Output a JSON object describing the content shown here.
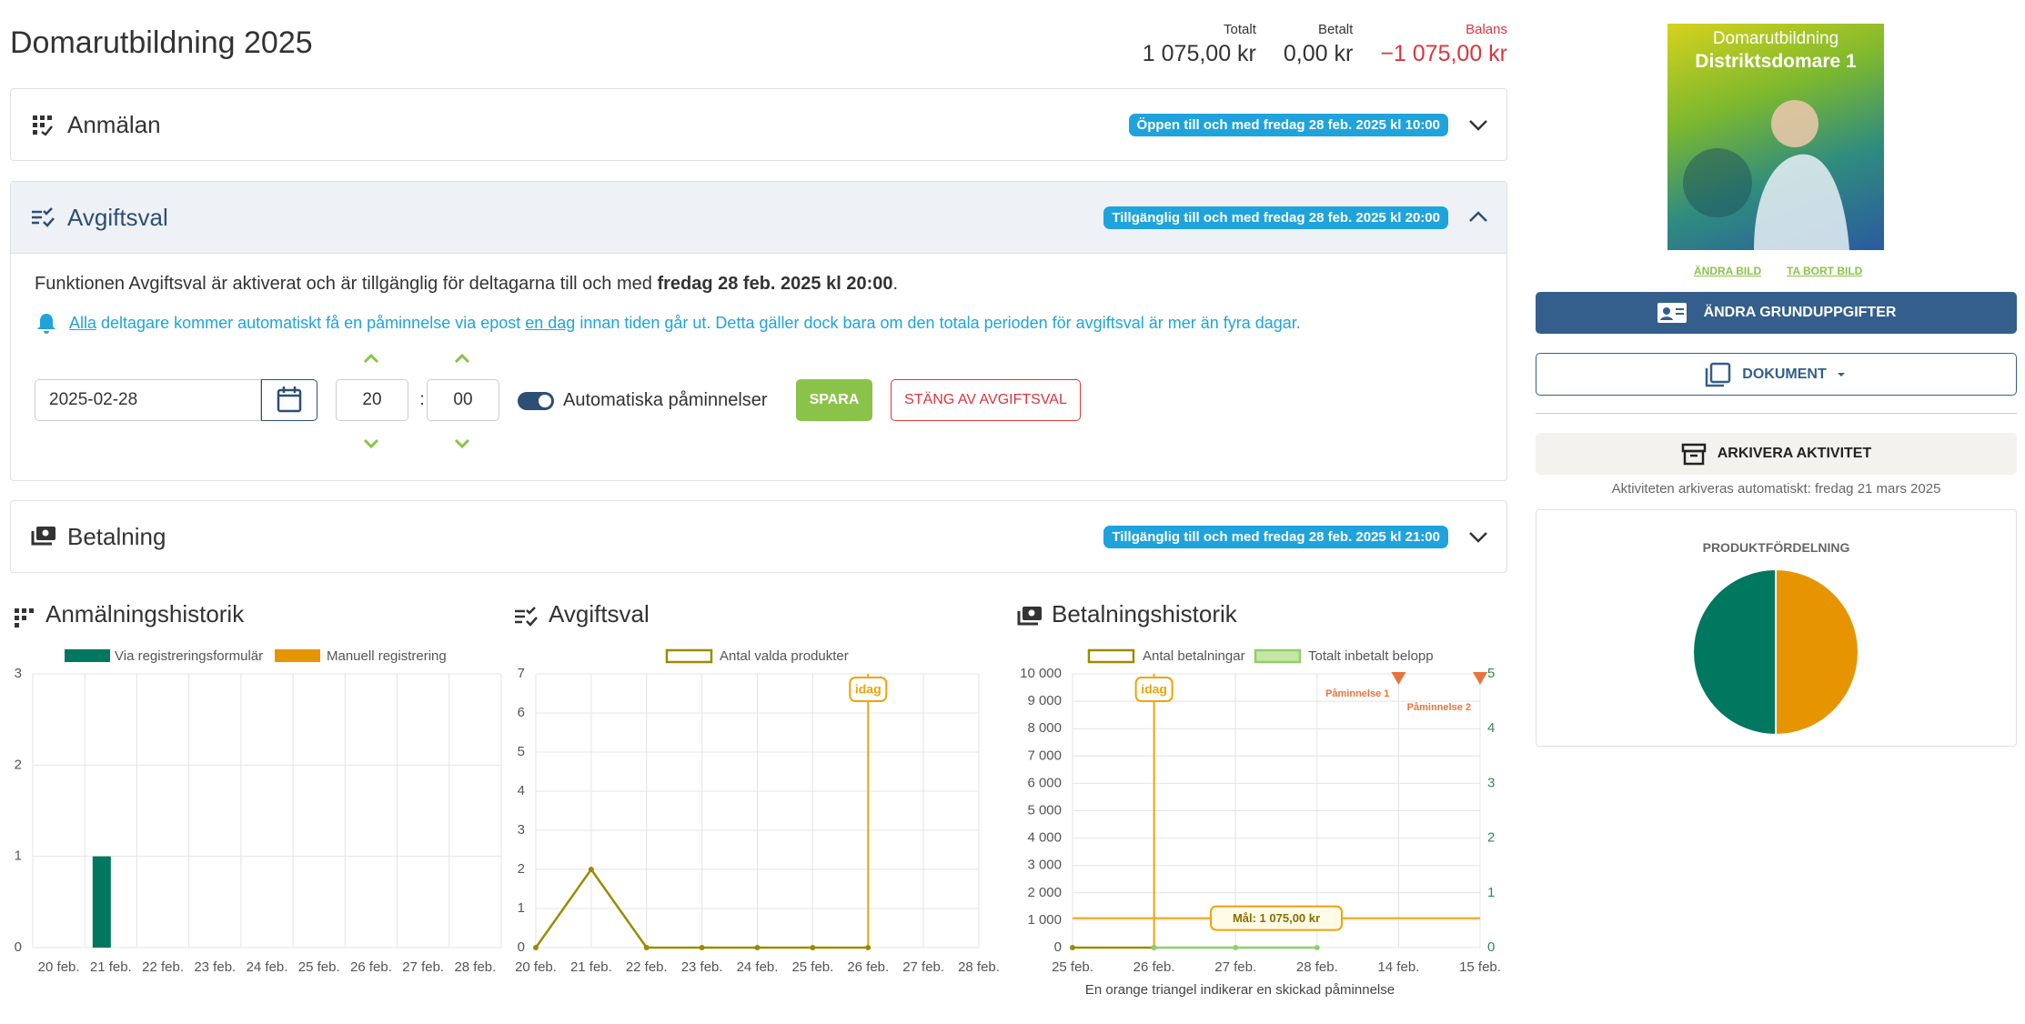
{
  "header": {
    "title": "Domarutbildning 2025",
    "totals": [
      {
        "label": "Totalt",
        "value": "1 075,00 kr"
      },
      {
        "label": "Betalt",
        "value": "0,00 kr"
      },
      {
        "label": "Balans",
        "value": "−1 075,00 kr"
      }
    ]
  },
  "sections": [
    {
      "title": "Anmälan",
      "badge": "Öppen till och med fredag 28 feb. 2025 kl 10:00"
    },
    {
      "title": "Avgiftsval",
      "badge": "Tillgänglig till och med fredag 28 feb. 2025 kl 20:00"
    },
    {
      "title": "Betalning",
      "badge": "Tillgänglig till och med fredag 28 feb. 2025 kl 21:00"
    }
  ],
  "avgiftsval": {
    "info_prefix": "Funktionen Avgiftsval är aktiverat och är tillgänglig för deltagarna till och med ",
    "info_bold": "fredag 28 feb. 2025 kl 20:00",
    "info_suffix": ".",
    "reminder_link1": "Alla",
    "reminder_text1": " deltagare kommer automatiskt få en påminnelse via epost ",
    "reminder_link2": "en dag",
    "reminder_text2": " innan tiden går ut. Detta gäller dock bara om den totala perioden för avgiftsval är mer än fyra dagar.",
    "date": "2025-02-28",
    "hour": "20",
    "separator": ":",
    "minute": "00",
    "toggle_label": "Automatiska påminnelser",
    "save": "SPARA",
    "disable": "STÄNG AV AVGIFTSVAL"
  },
  "sidebar": {
    "image_line1": "Domarutbildning",
    "image_line2": "Distriktsdomare 1",
    "change_image": "ÄNDRA BILD",
    "remove_image": "TA BORT BILD",
    "edit_button": "ÄNDRA GRUNDUPPGIFTER",
    "documents_button": "DOKUMENT",
    "archive_button": "ARKIVERA AKTIVITET",
    "archive_note": "Aktiviteten arkiveras automatiskt: fredag 21 mars 2025"
  },
  "chart_data": [
    {
      "type": "bar",
      "title": "Anmälningshistorik",
      "categories": [
        "20 feb.",
        "21 feb.",
        "22 feb.",
        "23 feb.",
        "24 feb.",
        "25 feb.",
        "26 feb.",
        "27 feb.",
        "28 feb."
      ],
      "series": [
        {
          "name": "Via registreringsformulär",
          "color": "#00775f",
          "values": [
            0,
            1,
            0,
            0,
            0,
            0,
            0,
            0,
            0
          ]
        },
        {
          "name": "Manuell registrering",
          "color": "#e69500",
          "values": [
            0,
            0,
            0,
            0,
            0,
            0,
            0,
            0,
            0
          ]
        }
      ],
      "ylim": [
        0,
        3
      ],
      "yticks": [
        0,
        1,
        2,
        3
      ],
      "grid": true
    },
    {
      "type": "line",
      "title": "Avgiftsval",
      "categories": [
        "20 feb.",
        "21 feb.",
        "22 feb.",
        "23 feb.",
        "24 feb.",
        "25 feb.",
        "26 feb.",
        "27 feb.",
        "28 feb."
      ],
      "series": [
        {
          "name": "Antal valda produkter",
          "color": "#9a8c00",
          "values": [
            0,
            2,
            0,
            0,
            0,
            0,
            0,
            null,
            null
          ]
        }
      ],
      "ylim": [
        0,
        7
      ],
      "yticks": [
        0,
        1,
        2,
        3,
        4,
        5,
        6,
        7
      ],
      "grid": true,
      "markers": [
        {
          "label": "idag",
          "x": "26 feb.",
          "color": "#f0a30a"
        }
      ]
    },
    {
      "type": "line",
      "title": "Betalningshistorik",
      "categories": [
        "25 feb.",
        "26 feb.",
        "27 feb.",
        "28 feb.",
        "14 feb.",
        "15 feb."
      ],
      "series": [
        {
          "name": "Antal betalningar",
          "color": "#9a8c00",
          "axis": "y2",
          "values": [
            0,
            0,
            null,
            null,
            null,
            null
          ]
        },
        {
          "name": "Totalt inbetalt belopp",
          "color": "#8fcf6a",
          "fill": "#c5e6a6",
          "values": [
            null,
            0,
            0,
            0,
            null,
            null
          ]
        }
      ],
      "ylim": [
        0,
        10000
      ],
      "yticks": [
        0,
        {
          "value": 1000,
          "label": "1 000"
        },
        {
          "value": 2000,
          "label": "2 000"
        },
        {
          "value": 3000,
          "label": "3 000"
        },
        {
          "value": 4000,
          "label": "4 000"
        },
        {
          "value": 5000,
          "label": "5 000"
        },
        {
          "value": 6000,
          "label": "6 000"
        },
        {
          "value": 7000,
          "label": "7 000"
        },
        {
          "value": 8000,
          "label": "8 000"
        },
        {
          "value": 9000,
          "label": "9 000"
        },
        {
          "value": 10000,
          "label": "10 000"
        }
      ],
      "y2lim": [
        0,
        5
      ],
      "y2ticks": [
        0,
        1,
        2,
        3,
        4,
        5
      ],
      "y2color": "#2e8b57",
      "grid": true,
      "markers": [
        {
          "label": "idag",
          "x": "26 feb.",
          "color": "#f0a30a"
        }
      ],
      "goal": {
        "label": "Mål: 1 075,00 kr",
        "value": 1075,
        "color": "#f0a30a"
      },
      "reminders": [
        {
          "label": "Påminnelse 1",
          "x": "14 feb."
        },
        {
          "label": "Påminnelse 2",
          "x": "15 feb."
        }
      ],
      "reminder_color": "#e8743b",
      "note": "En orange triangel indikerar en skickad påminnelse"
    },
    {
      "type": "pie",
      "title": "PRODUKTFÖRDELNING",
      "values": [
        50,
        50
      ],
      "colors": [
        "#e69500",
        "#00775f"
      ]
    }
  ]
}
